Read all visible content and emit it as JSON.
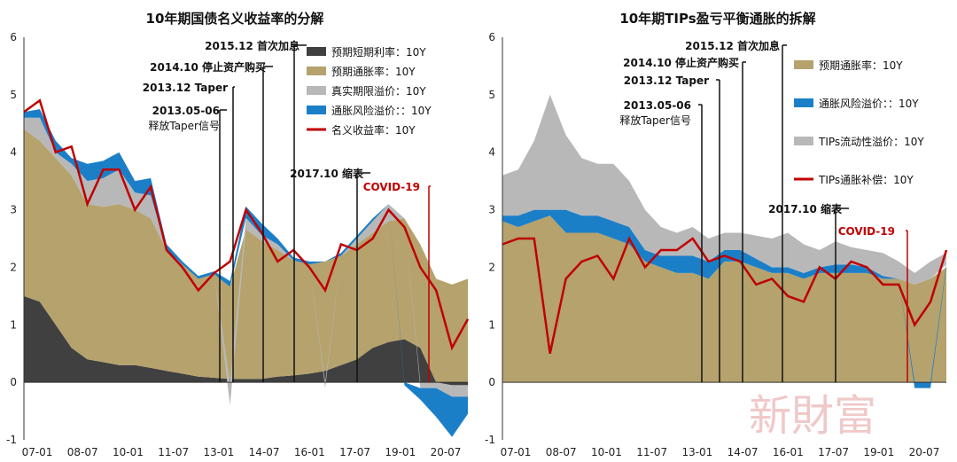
{
  "chart_data": [
    {
      "type": "area",
      "title": "10年期国债名义收益率的分解",
      "ylim": [
        -1,
        6
      ],
      "yticks": [
        "6",
        "5",
        "4",
        "3",
        "2",
        "1",
        "0",
        "-1"
      ],
      "xticks": [
        "07-01",
        "08-07",
        "10-01",
        "11-07",
        "13-01",
        "14-07",
        "16-01",
        "17-07",
        "19-01",
        "20-07"
      ],
      "legend": [
        {
          "label": "预期短期利率：10Y",
          "color": "#404040",
          "kind": "box"
        },
        {
          "label": "预期通胀率：10Y",
          "color": "#b5a26d",
          "kind": "box"
        },
        {
          "label": "真实期限溢价：10Y",
          "color": "#b8b8b8",
          "kind": "box"
        },
        {
          "label": "通胀风险溢价：：10Y",
          "color": "#1b7fc8",
          "kind": "box"
        },
        {
          "label": "名义收益率：10Y",
          "color": "#c00000",
          "kind": "line"
        }
      ],
      "annotations": [
        {
          "label": "2015.12 首次加息",
          "t": 2015.95
        },
        {
          "label": "2014.10 停止资产购买",
          "t": 2014.8
        },
        {
          "label": "2013.12 Taper",
          "t": 2013.95
        },
        {
          "label": "2013.05-06",
          "sub": "释放Taper信号",
          "t": 2013.4
        },
        {
          "label": "2017.10 缩表",
          "t": 2017.8
        },
        {
          "label": "COVID-19",
          "t": 2020.2,
          "covid": true
        }
      ],
      "x": [
        2007.0,
        2007.5,
        2008.0,
        2008.5,
        2009.0,
        2009.5,
        2010.0,
        2010.5,
        2011.0,
        2011.5,
        2012.0,
        2012.5,
        2013.0,
        2013.5,
        2014.0,
        2014.5,
        2015.0,
        2015.5,
        2016.0,
        2016.5,
        2017.0,
        2017.5,
        2018.0,
        2018.5,
        2019.0,
        2019.5,
        2020.0,
        2020.5,
        2021.0
      ],
      "series": [
        {
          "name": "预期短期利率：10Y",
          "values": [
            1.5,
            1.4,
            1.0,
            0.6,
            0.4,
            0.35,
            0.3,
            0.3,
            0.25,
            0.2,
            0.15,
            0.1,
            0.08,
            0.06,
            0.06,
            0.06,
            0.1,
            0.12,
            0.15,
            0.2,
            0.3,
            0.4,
            0.6,
            0.7,
            0.75,
            0.6,
            0.0,
            -0.05,
            -0.05
          ]
        },
        {
          "name": "预期通胀率：10Y",
          "values": [
            2.9,
            2.8,
            2.9,
            3.0,
            2.7,
            2.7,
            2.8,
            2.7,
            2.6,
            2.1,
            1.9,
            1.7,
            1.8,
            1.6,
            2.6,
            2.4,
            2.2,
            2.0,
            1.9,
            1.9,
            1.9,
            2.0,
            2.0,
            2.1,
            2.1,
            1.8,
            1.8,
            1.7,
            1.8
          ]
        },
        {
          "name": "真实期限溢价：10Y",
          "values": [
            0.2,
            0.4,
            0.1,
            0.2,
            0.4,
            0.5,
            0.6,
            0.3,
            0.4,
            0.0,
            0.0,
            0.0,
            0.0,
            -0.4,
            0.2,
            0.1,
            0.1,
            0.0,
            0.0,
            -0.1,
            0.0,
            0.1,
            0.2,
            0.3,
            0.0,
            -0.1,
            -0.1,
            -0.2,
            -0.2
          ]
        },
        {
          "name": "通胀风险溢价：：10Y",
          "values": [
            0.1,
            0.15,
            0.2,
            0.1,
            0.3,
            0.3,
            0.3,
            0.2,
            0.3,
            0.1,
            0.05,
            0.05,
            0.05,
            0.1,
            0.2,
            0.2,
            0.1,
            0.05,
            0.05,
            0.0,
            0.05,
            0.05,
            0.05,
            0.0,
            -0.05,
            -0.2,
            -0.5,
            -0.7,
            -0.3
          ]
        },
        {
          "name": "名义收益率：10Y",
          "values": [
            4.7,
            4.9,
            4.0,
            4.1,
            3.1,
            3.7,
            3.7,
            3.0,
            3.4,
            2.3,
            2.0,
            1.6,
            1.9,
            2.1,
            3.0,
            2.6,
            2.1,
            2.3,
            2.0,
            1.6,
            2.4,
            2.3,
            2.5,
            3.0,
            2.7,
            2.0,
            1.6,
            0.6,
            1.1
          ]
        }
      ]
    },
    {
      "type": "area",
      "title": "10年期TIPs盈亏平衡通胀的拆解",
      "ylim": [
        -1,
        6
      ],
      "yticks": [
        "6",
        "5",
        "4",
        "3",
        "2",
        "1",
        "0",
        "-1"
      ],
      "xticks": [
        "07-01",
        "08-07",
        "10-01",
        "11-07",
        "13-01",
        "14-07",
        "16-01",
        "17-07",
        "19-01",
        "20-07"
      ],
      "legend": [
        {
          "label": "预期通胀率：10Y",
          "color": "#b5a26d",
          "kind": "box"
        },
        {
          "label": "通胀风险溢价：：10Y",
          "color": "#1b7fc8",
          "kind": "box"
        },
        {
          "label": "TIPs流动性溢价：10Y",
          "color": "#b8b8b8",
          "kind": "box"
        },
        {
          "label": "TIPs通胀补偿：10Y",
          "color": "#c00000",
          "kind": "line"
        }
      ],
      "annotations": [
        {
          "label": "2015.12 首次加息",
          "t": 2015.95
        },
        {
          "label": "2014.10 停止资产购买",
          "t": 2014.8
        },
        {
          "label": "2013.12 Taper",
          "t": 2013.95
        },
        {
          "label": "2013.05-06",
          "sub": "释放Taper信号",
          "t": 2013.4
        },
        {
          "label": "2017.10 缩表",
          "t": 2017.8
        },
        {
          "label": "COVID-19",
          "t": 2020.2,
          "covid": true
        }
      ],
      "x": [
        2007.0,
        2007.5,
        2008.0,
        2008.5,
        2009.0,
        2009.5,
        2010.0,
        2010.5,
        2011.0,
        2011.5,
        2012.0,
        2012.5,
        2013.0,
        2013.5,
        2014.0,
        2014.5,
        2015.0,
        2015.5,
        2016.0,
        2016.5,
        2017.0,
        2017.5,
        2018.0,
        2018.5,
        2019.0,
        2019.5,
        2020.0,
        2020.5,
        2021.0
      ],
      "series": [
        {
          "name": "预期通胀率：10Y",
          "values": [
            2.8,
            2.7,
            2.8,
            2.9,
            2.6,
            2.6,
            2.6,
            2.5,
            2.4,
            2.1,
            2.0,
            1.9,
            1.9,
            1.8,
            2.1,
            2.1,
            2.0,
            1.9,
            1.9,
            1.8,
            1.9,
            1.9,
            1.9,
            1.9,
            1.8,
            1.8,
            1.7,
            1.8,
            2.0
          ]
        },
        {
          "name": "通胀风险溢价：：10Y",
          "values": [
            0.1,
            0.2,
            0.2,
            0.1,
            0.4,
            0.3,
            0.3,
            0.3,
            0.3,
            0.2,
            0.2,
            0.3,
            0.3,
            0.3,
            0.2,
            0.2,
            0.15,
            0.1,
            0.1,
            0.1,
            0.1,
            0.15,
            0.15,
            0.1,
            0.05,
            0.0,
            -0.1,
            -0.1,
            0.05
          ]
        },
        {
          "name": "TIPs流动性溢价：10Y",
          "values": [
            0.7,
            0.8,
            1.2,
            2.0,
            1.3,
            1.0,
            0.9,
            1.0,
            0.8,
            0.7,
            0.5,
            0.4,
            0.5,
            0.4,
            0.3,
            0.3,
            0.4,
            0.5,
            0.6,
            0.5,
            0.3,
            0.4,
            0.3,
            0.3,
            0.4,
            0.3,
            0.2,
            0.3,
            0.2
          ]
        },
        {
          "name": "TIPs通胀补偿：10Y",
          "values": [
            2.4,
            2.5,
            2.5,
            0.5,
            1.8,
            2.1,
            2.2,
            1.8,
            2.5,
            2.0,
            2.3,
            2.3,
            2.5,
            2.1,
            2.2,
            2.1,
            1.7,
            1.8,
            1.5,
            1.4,
            2.0,
            1.8,
            2.1,
            2.0,
            1.7,
            1.7,
            1.0,
            1.4,
            2.3
          ]
        }
      ]
    }
  ],
  "watermark": "新財富"
}
